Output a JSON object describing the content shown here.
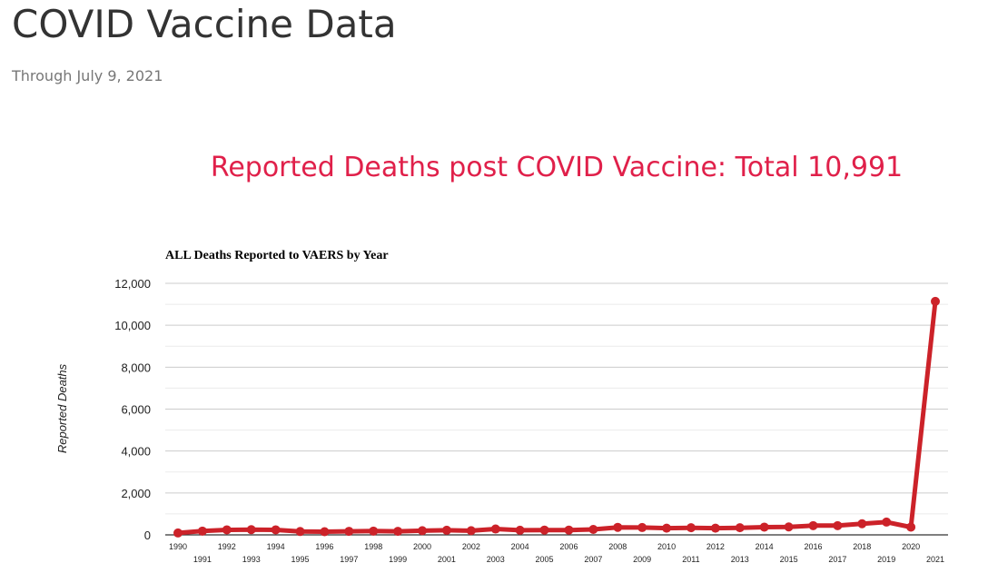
{
  "page": {
    "title": "COVID Vaccine Data",
    "subtitle": "Through July 9, 2021",
    "headline": "Reported Deaths post COVID Vaccine: Total 10,991"
  },
  "chart_data": {
    "type": "line",
    "title": "ALL Deaths Reported to VAERS by Year",
    "xlabel": "",
    "ylabel": "Reported Deaths",
    "ylim": [
      0,
      12000
    ],
    "yticks": [
      0,
      2000,
      4000,
      6000,
      8000,
      10000,
      12000
    ],
    "ytick_labels": [
      "0",
      "2,000",
      "4,000",
      "6,000",
      "8,000",
      "10,000",
      "12,000"
    ],
    "grid": true,
    "color": "#cc2229",
    "categories": [
      "1990",
      "1991",
      "1992",
      "1993",
      "1994",
      "1995",
      "1996",
      "1997",
      "1998",
      "1999",
      "2000",
      "2001",
      "2002",
      "2003",
      "2004",
      "2005",
      "2006",
      "2007",
      "2008",
      "2009",
      "2010",
      "2011",
      "2012",
      "2013",
      "2014",
      "2015",
      "2016",
      "2017",
      "2018",
      "2019",
      "2020",
      "2021"
    ],
    "values": [
      90,
      180,
      240,
      250,
      240,
      160,
      150,
      170,
      180,
      170,
      200,
      220,
      200,
      280,
      220,
      230,
      230,
      260,
      360,
      350,
      320,
      340,
      320,
      340,
      370,
      380,
      440,
      440,
      530,
      610,
      370,
      11140
    ]
  }
}
